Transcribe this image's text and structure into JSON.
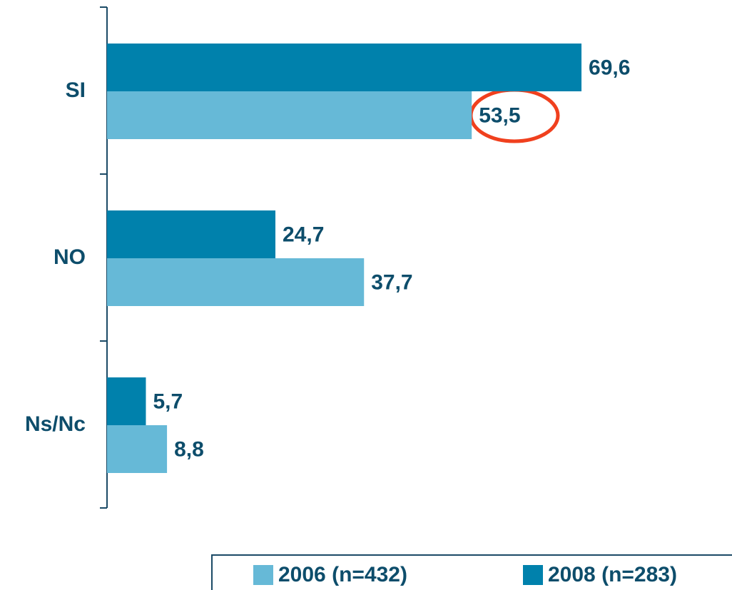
{
  "chart_data": {
    "type": "hbar",
    "categories": [
      "SI",
      "NO",
      "Ns/Nc"
    ],
    "series": [
      {
        "name": "2006 (n=432)",
        "color": "#66b9d7",
        "values": [
          53.5,
          37.7,
          8.8
        ],
        "value_labels": [
          "53,5",
          "37,7",
          "8,8"
        ]
      },
      {
        "name": "2008 (n=283)",
        "color": "#0081ac",
        "values": [
          69.6,
          24.7,
          5.7
        ],
        "value_labels": [
          "69,6",
          "24,7",
          "5,7"
        ]
      }
    ]
  }
}
